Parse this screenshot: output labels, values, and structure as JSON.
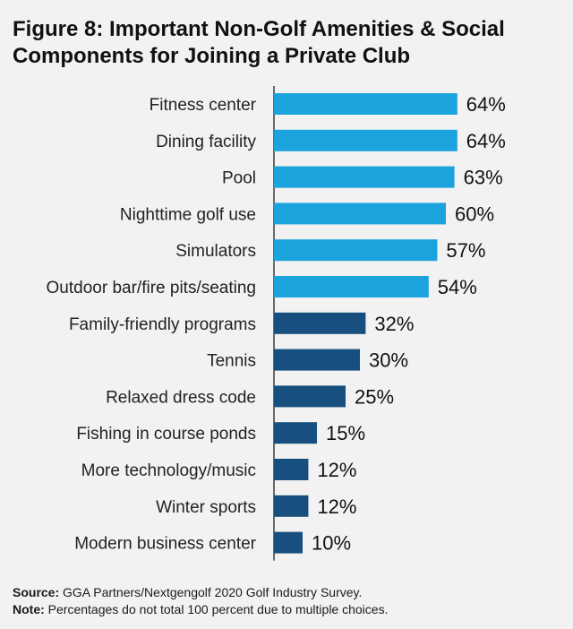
{
  "title": "Figure 8: Important Non-Golf Amenities & Social Components for Joining a Private Club",
  "footer": {
    "source_label": "Source:",
    "source_text": "GGA Partners/Nextgengolf 2020 Golf Industry Survey.",
    "note_label": "Note:",
    "note_text": "Percentages do not total 100 percent due to multiple choices."
  },
  "chart_data": {
    "type": "bar",
    "orientation": "horizontal",
    "title": "Figure 8: Important Non-Golf Amenities & Social Components for Joining a Private Club",
    "categories": [
      "Fitness center",
      "Dining facility",
      "Pool",
      "Nighttime golf use",
      "Simulators",
      "Outdoor bar/fire pits/seating",
      "Family-friendly programs",
      "Tennis",
      "Relaxed dress code",
      "Fishing in course ponds",
      "More technology/music",
      "Winter sports",
      "Modern business center"
    ],
    "values": [
      64,
      64,
      63,
      60,
      57,
      54,
      32,
      30,
      25,
      15,
      12,
      12,
      10
    ],
    "labels": [
      "64%",
      "64%",
      "63%",
      "60%",
      "57%",
      "54%",
      "32%",
      "30%",
      "25%",
      "15%",
      "12%",
      "12%",
      "10%"
    ],
    "colors": [
      "#1aa3dc",
      "#1aa3dc",
      "#1aa3dc",
      "#1aa3dc",
      "#1aa3dc",
      "#1aa3dc",
      "#17507e",
      "#17507e",
      "#17507e",
      "#17507e",
      "#17507e",
      "#17507e",
      "#17507e"
    ],
    "xlim": [
      0,
      100
    ],
    "xlabel": "",
    "ylabel": "",
    "grid": false,
    "legend": false
  }
}
